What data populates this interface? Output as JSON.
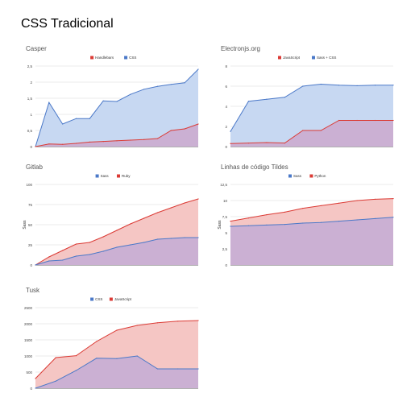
{
  "page": {
    "title": "CSS Tradicional"
  },
  "chart_data": [
    {
      "type": "area",
      "title": "Casper",
      "xlabel": "",
      "ylabel": "",
      "ylim": [
        0,
        2.5
      ],
      "yticks": [
        "0",
        "0,5",
        "1",
        "1,5",
        "2",
        "2,5"
      ],
      "grid": true,
      "legend": "top",
      "x": [
        0,
        1,
        2,
        3,
        4,
        5,
        6,
        7,
        8,
        9,
        10,
        11,
        12
      ],
      "series": [
        {
          "name": "CSS",
          "color": "#4a78c8",
          "fill": "#c7d8f2",
          "values": [
            0,
            1.37,
            0.7,
            0.87,
            0.87,
            1.42,
            1.4,
            1.62,
            1.78,
            1.87,
            1.93,
            1.98,
            2.4
          ]
        },
        {
          "name": "Handlebars",
          "color": "#db3a34",
          "fill": "#cbb0d3",
          "values": [
            0,
            0.08,
            0.07,
            0.1,
            0.14,
            0.16,
            0.18,
            0.2,
            0.22,
            0.25,
            0.5,
            0.55,
            0.7
          ]
        }
      ],
      "legend_order": [
        1,
        0
      ]
    },
    {
      "type": "area",
      "title": "Electronjs.org",
      "xlabel": "",
      "ylabel": "",
      "ylim": [
        0,
        8
      ],
      "yticks": [
        "0",
        "2",
        "4",
        "6",
        "8"
      ],
      "grid": true,
      "legend": "top",
      "x": [
        0,
        1,
        2,
        3,
        4,
        5,
        6,
        7,
        8,
        9
      ],
      "series": [
        {
          "name": "Sass + CSS",
          "color": "#4a78c8",
          "fill": "#c7d8f2",
          "values": [
            1.5,
            4.5,
            4.7,
            4.9,
            6.0,
            6.2,
            6.1,
            6.05,
            6.1,
            6.1
          ]
        },
        {
          "name": "JavaScript",
          "color": "#db3a34",
          "fill": "#cbb0d3",
          "values": [
            0.3,
            0.35,
            0.4,
            0.35,
            1.6,
            1.6,
            2.6,
            2.6,
            2.6,
            2.6
          ]
        }
      ],
      "legend_order": [
        1,
        0
      ]
    },
    {
      "type": "area",
      "title": "Gitlab",
      "xlabel": "",
      "ylabel": "Sass",
      "ylim": [
        0,
        100
      ],
      "yticks": [
        "0",
        "25",
        "50",
        "75",
        "100"
      ],
      "grid": true,
      "legend": "top",
      "x": [
        0,
        1,
        2,
        3,
        4,
        5,
        6,
        7,
        8,
        9,
        10,
        11,
        12
      ],
      "series": [
        {
          "name": "Ruby",
          "color": "#db3a34",
          "fill": "#f5c6c4",
          "values": [
            0,
            10,
            18,
            26,
            28,
            35,
            43,
            51,
            58,
            65,
            71,
            77,
            82
          ]
        },
        {
          "name": "Sass",
          "color": "#4a78c8",
          "fill": "#cbb0d3",
          "values": [
            0,
            5,
            6,
            11,
            13,
            17,
            22,
            25,
            28,
            32,
            33,
            34,
            34
          ]
        }
      ],
      "legend_order": [
        1,
        0
      ]
    },
    {
      "type": "area",
      "title": "Linhas de código Tildes",
      "xlabel": "",
      "ylabel": "Sass",
      "ylim": [
        0,
        12.5
      ],
      "yticks": [
        "0",
        "2,5",
        "5",
        "7,5",
        "10",
        "12,5"
      ],
      "grid": true,
      "legend": "top",
      "x": [
        0,
        1,
        2,
        3,
        4,
        5,
        6,
        7,
        8,
        9
      ],
      "series": [
        {
          "name": "Python",
          "color": "#db3a34",
          "fill": "#f5c6c4",
          "values": [
            6.8,
            7.3,
            7.8,
            8.2,
            8.8,
            9.2,
            9.6,
            10.0,
            10.2,
            10.3
          ]
        },
        {
          "name": "Sass",
          "color": "#4a78c8",
          "fill": "#cbb0d3",
          "values": [
            6.0,
            6.1,
            6.2,
            6.3,
            6.5,
            6.6,
            6.8,
            7.0,
            7.2,
            7.4
          ]
        }
      ],
      "legend_order": [
        1,
        0
      ]
    },
    {
      "type": "area",
      "title": "Tusk",
      "xlabel": "",
      "ylabel": "",
      "ylim": [
        0,
        2500
      ],
      "yticks": [
        "0",
        "500",
        "1000",
        "1500",
        "2000",
        "2500"
      ],
      "grid": true,
      "legend": "top",
      "x": [
        0,
        1,
        2,
        3,
        4,
        5,
        6,
        7,
        8
      ],
      "series": [
        {
          "name": "JavaScript",
          "color": "#db3a34",
          "fill": "#f5c6c4",
          "values": [
            300,
            950,
            1010,
            1450,
            1800,
            1950,
            2030,
            2080,
            2100
          ]
        },
        {
          "name": "CSS",
          "color": "#4a78c8",
          "fill": "#cbb0d3",
          "values": [
            0,
            220,
            550,
            930,
            920,
            1000,
            600,
            600,
            600
          ]
        }
      ],
      "legend_order": [
        1,
        0
      ],
      "x_points_used": 9
    }
  ]
}
